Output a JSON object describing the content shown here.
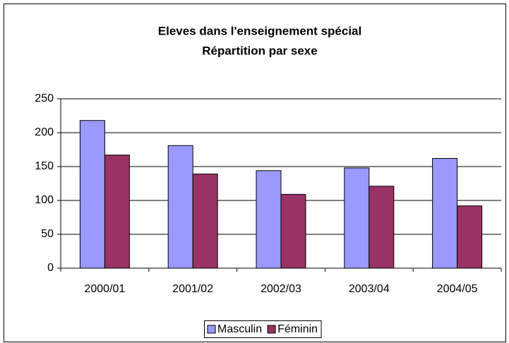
{
  "chart_data": {
    "type": "bar",
    "title": "Eleves dans l'enseignement spécial",
    "subtitle": "Répartition par sexe",
    "categories": [
      "2000/01",
      "2001/02",
      "2002/03",
      "2003/04",
      "2004/05"
    ],
    "series": [
      {
        "name": "Masculin",
        "color": "#9999ff",
        "values": [
          218,
          181,
          144,
          148,
          162
        ]
      },
      {
        "name": "Féminin",
        "color": "#993366",
        "values": [
          167,
          139,
          109,
          121,
          92
        ]
      }
    ],
    "ylim": [
      0,
      250
    ],
    "yticks": [
      0,
      50,
      100,
      150,
      200,
      250
    ],
    "grid": true,
    "legend": "bottom"
  }
}
